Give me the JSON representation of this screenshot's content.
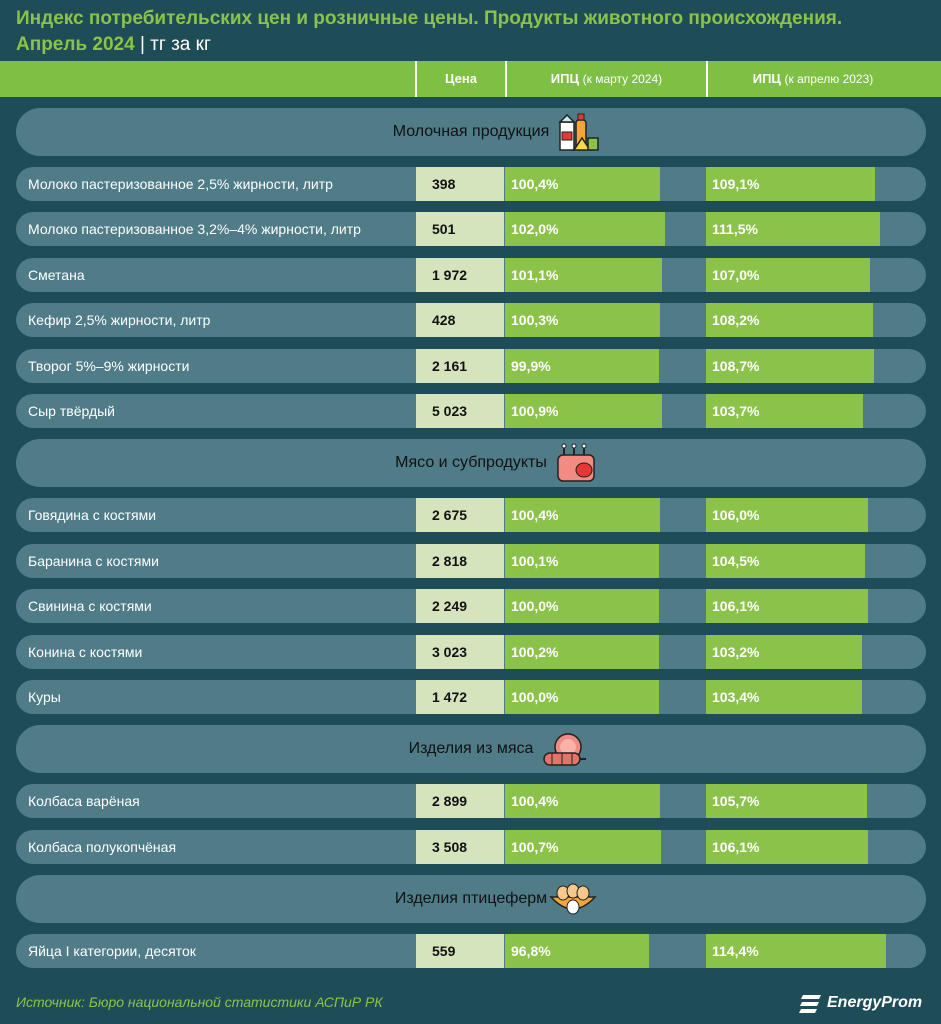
{
  "header": {
    "title_line1": "Индекс потребительских цен и розничные цены. Продукты животного происхождения.",
    "title_line2": "Апрель 2024",
    "separator": "|",
    "unit": "тг за кг",
    "col_price": "Цена",
    "col_cpi_mar_main": "ИПЦ",
    "col_cpi_mar_sub": "(к марту 2024)",
    "col_cpi_apr_main": "ИПЦ",
    "col_cpi_apr_sub": "(к апрелю 2023)"
  },
  "colors": {
    "background": "#1f4d57",
    "row": "#4f7c87",
    "accent_green": "#8bc34a",
    "price_cell": "#d6e4bd"
  },
  "chart_data": {
    "type": "table",
    "columns": [
      "Цена",
      "ИПЦ (к марту 2024)",
      "ИПЦ (к апрелю 2023)"
    ],
    "groups": [
      {
        "name": "Молочная продукция",
        "icon": "dairy-icon",
        "rows": [
          {
            "name": "Молоко пастеризованное 2,5% жирности, литр",
            "price": "398",
            "cpi_mar": "100,4%",
            "cpi_apr": "109,1%",
            "v_mar": 100.4,
            "v_apr": 109.1
          },
          {
            "name": "Молоко пастеризованное 3,2%–4% жирности, литр",
            "price": "501",
            "cpi_mar": "102,0%",
            "cpi_apr": "111,5%",
            "v_mar": 102.0,
            "v_apr": 111.5
          },
          {
            "name": "Сметана",
            "price": "1 972",
            "cpi_mar": "101,1%",
            "cpi_apr": "107,0%",
            "v_mar": 101.1,
            "v_apr": 107.0
          },
          {
            "name": "Кефир 2,5% жирности, литр",
            "price": "428",
            "cpi_mar": "100,3%",
            "cpi_apr": "108,2%",
            "v_mar": 100.3,
            "v_apr": 108.2
          },
          {
            "name": "Творог 5%–9% жирности",
            "price": "2 161",
            "cpi_mar": "99,9%",
            "cpi_apr": "108,7%",
            "v_mar": 99.9,
            "v_apr": 108.7
          },
          {
            "name": "Сыр твёрдый",
            "price": "5 023",
            "cpi_mar": "100,9%",
            "cpi_apr": "103,7%",
            "v_mar": 100.9,
            "v_apr": 103.7
          }
        ]
      },
      {
        "name": "Мясо и субпродукты",
        "icon": "meat-icon",
        "rows": [
          {
            "name": "Говядина с костями",
            "price": "2 675",
            "cpi_mar": "100,4%",
            "cpi_apr": "106,0%",
            "v_mar": 100.4,
            "v_apr": 106.0
          },
          {
            "name": "Баранина с костями",
            "price": "2 818",
            "cpi_mar": "100,1%",
            "cpi_apr": "104,5%",
            "v_mar": 100.1,
            "v_apr": 104.5
          },
          {
            "name": "Свинина с костями",
            "price": "2 249",
            "cpi_mar": "100,0%",
            "cpi_apr": "106,1%",
            "v_mar": 100.0,
            "v_apr": 106.1
          },
          {
            "name": "Конина с костями",
            "price": "3 023",
            "cpi_mar": "100,2%",
            "cpi_apr": "103,2%",
            "v_mar": 100.2,
            "v_apr": 103.2
          },
          {
            "name": "Куры",
            "price": "1 472",
            "cpi_mar": "100,0%",
            "cpi_apr": "103,4%",
            "v_mar": 100.0,
            "v_apr": 103.4
          }
        ]
      },
      {
        "name": "Изделия из мяса",
        "icon": "sausage-icon",
        "rows": [
          {
            "name": "Колбаса варёная",
            "price": "2 899",
            "cpi_mar": "100,4%",
            "cpi_apr": "105,7%",
            "v_mar": 100.4,
            "v_apr": 105.7
          },
          {
            "name": "Колбаса полукопчёная",
            "price": "3 508",
            "cpi_mar": "100,7%",
            "cpi_apr": "106,1%",
            "v_mar": 100.7,
            "v_apr": 106.1
          }
        ]
      },
      {
        "name": "Изделия птицеферм",
        "icon": "eggs-icon",
        "rows": [
          {
            "name": "Яйца I категории, десяток",
            "price": "559",
            "cpi_mar": "96,8%",
            "cpi_apr": "114,4%",
            "v_mar": 96.8,
            "v_apr": 114.4
          }
        ]
      }
    ]
  },
  "footer": {
    "source": "Источник: Бюро национальной статистики АСПиР РК",
    "brand": "EnergyProm"
  }
}
